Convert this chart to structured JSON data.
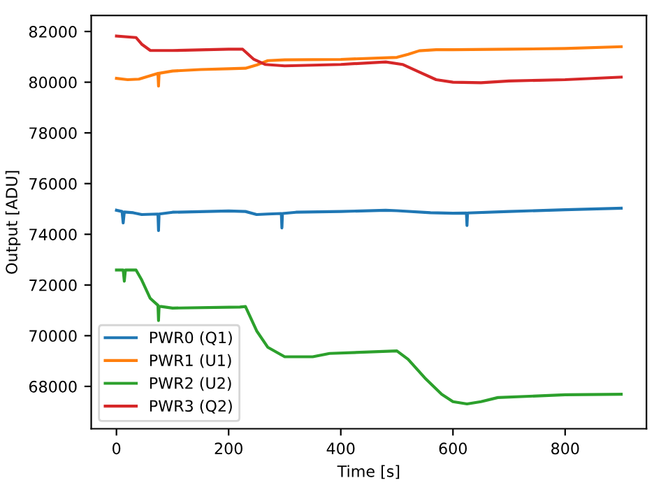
{
  "chart_data": {
    "type": "line",
    "xlabel": "Time [s]",
    "ylabel": "Output [ADU]",
    "xlim": [
      -45,
      945
    ],
    "ylim": [
      66330,
      82630
    ],
    "xticks": [
      0,
      200,
      400,
      600,
      800
    ],
    "yticks": [
      68000,
      70000,
      72000,
      74000,
      76000,
      78000,
      80000,
      82000
    ],
    "legend": "bottom left",
    "grid": false,
    "series": [
      {
        "name": "PWR0 (Q1)",
        "color": "#1f77b4",
        "x": [
          0,
          10,
          12,
          14,
          30,
          45,
          74,
          75,
          76,
          100,
          200,
          230,
          250,
          270,
          294,
          295,
          296,
          320,
          400,
          480,
          500,
          560,
          600,
          624,
          625,
          626,
          700,
          800,
          900
        ],
        "values": [
          74950,
          74900,
          74450,
          74880,
          74850,
          74780,
          74800,
          74150,
          74800,
          74870,
          74920,
          74900,
          74780,
          74800,
          74820,
          74250,
          74820,
          74870,
          74900,
          74950,
          74930,
          74850,
          74830,
          74840,
          74350,
          74840,
          74900,
          74970,
          75030
        ]
      },
      {
        "name": "PWR1 (U1)",
        "color": "#ff7f0e",
        "x": [
          0,
          20,
          40,
          74,
          75,
          76,
          100,
          150,
          200,
          230,
          250,
          270,
          300,
          400,
          500,
          520,
          540,
          570,
          600,
          700,
          800,
          900
        ],
        "values": [
          80150,
          80100,
          80120,
          80350,
          79850,
          80350,
          80440,
          80500,
          80530,
          80550,
          80680,
          80850,
          80880,
          80900,
          80980,
          81100,
          81240,
          81280,
          81280,
          81300,
          81330,
          81400
        ]
      },
      {
        "name": "PWR2 (U2)",
        "color": "#2ca02c",
        "x": [
          0,
          12,
          14,
          16,
          35,
          45,
          60,
          74,
          75,
          76,
          80,
          100,
          220,
          230,
          250,
          270,
          300,
          350,
          380,
          500,
          520,
          550,
          580,
          600,
          625,
          650,
          680,
          800,
          900
        ],
        "values": [
          72590,
          72590,
          72150,
          72590,
          72590,
          72200,
          71480,
          71200,
          70600,
          71150,
          71150,
          71090,
          71130,
          71150,
          70190,
          69540,
          69170,
          69170,
          69300,
          69400,
          69070,
          68330,
          67690,
          67400,
          67310,
          67400,
          67560,
          67670,
          67690
        ]
      },
      {
        "name": "PWR3 (Q2)",
        "color": "#d62728",
        "x": [
          0,
          35,
          45,
          60,
          100,
          200,
          225,
          245,
          265,
          300,
          400,
          480,
          510,
          540,
          570,
          600,
          650,
          700,
          800,
          900
        ],
        "values": [
          81820,
          81760,
          81500,
          81256,
          81250,
          81300,
          81300,
          80900,
          80700,
          80645,
          80700,
          80800,
          80700,
          80400,
          80100,
          80000,
          79980,
          80050,
          80100,
          80200
        ]
      }
    ]
  }
}
